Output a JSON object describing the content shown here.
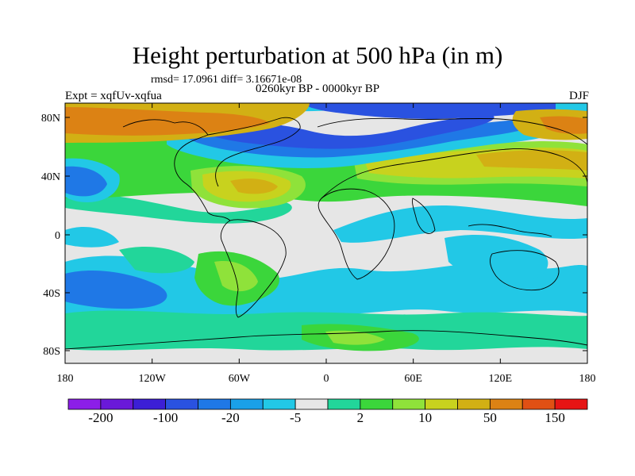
{
  "title": "Height perturbation at 500 hPa (in m)",
  "stats_line": "rmsd= 17.0961 diff= 3.16671e-08",
  "period": "0260kyr BP - 0000kyr BP",
  "experiment": "Expt = xqfUv-xqfua",
  "season": "DJF",
  "y_axis_labels": [
    "80N",
    "40N",
    "0",
    "40S",
    "80S"
  ],
  "x_axis_labels": [
    "180",
    "120W",
    "60W",
    "0",
    "60E",
    "120E",
    "180"
  ],
  "colorbar": {
    "labels": [
      "-200",
      "-100",
      "-20",
      "-5",
      "2",
      "10",
      "50",
      "150"
    ],
    "colors": [
      "#8c1ee8",
      "#6a19d9",
      "#3c1fd6",
      "#2a52e0",
      "#1f78e6",
      "#1aa0e8",
      "#22c8e6",
      "#e6e6e6",
      "#22d69a",
      "#3bd63b",
      "#8fe23a",
      "#c8d21e",
      "#d2b014",
      "#dc8214",
      "#e05014",
      "#e61414"
    ]
  }
}
